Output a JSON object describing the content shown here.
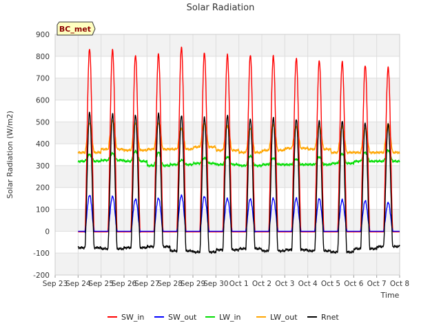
{
  "chart_data": {
    "type": "line",
    "title": "Solar Radiation",
    "xlabel": "Time",
    "ylabel": "Solar Radiation (W/m2)",
    "badge": "BC_met",
    "ylim": [
      -200,
      900
    ],
    "yticks": [
      -200,
      -100,
      0,
      100,
      200,
      300,
      400,
      500,
      600,
      700,
      800,
      900
    ],
    "xlim": [
      0,
      15
    ],
    "xticks": [
      "Sep 23",
      "Sep 24",
      "Sep 25",
      "Sep 26",
      "Sep 27",
      "Sep 28",
      "Sep 29",
      "Sep 30",
      "Oct 1",
      "Oct 2",
      "Oct 3",
      "Oct 4",
      "Oct 5",
      "Oct 6",
      "Oct 7",
      "Oct 8"
    ],
    "grid": true,
    "legend_position": "bottom",
    "days": [
      "Sep 23",
      "Sep 24",
      "Sep 25",
      "Sep 26",
      "Sep 27",
      "Sep 28",
      "Sep 29",
      "Sep 30",
      "Oct 1",
      "Oct 2",
      "Oct 3",
      "Oct 4",
      "Oct 5",
      "Oct 6"
    ],
    "series": [
      {
        "name": "SW_in",
        "color": "#ff0000",
        "daily_peak": [
          835,
          830,
          805,
          810,
          840,
          815,
          805,
          805,
          800,
          790,
          780,
          775,
          760,
          750
        ],
        "night_value": 0
      },
      {
        "name": "SW_out",
        "color": "#0000ff",
        "daily_peak": [
          165,
          160,
          148,
          152,
          165,
          160,
          150,
          148,
          150,
          150,
          148,
          142,
          138,
          130
        ],
        "night_value": 0
      },
      {
        "name": "LW_in",
        "color": "#00dd00",
        "night_level": [
          320,
          325,
          320,
          300,
          305,
          310,
          305,
          300,
          305,
          305,
          305,
          310,
          320,
          320
        ],
        "daily_peak": [
          350,
          355,
          365,
          360,
          325,
          335,
          340,
          345,
          335,
          330,
          340,
          355,
          360,
          370
        ]
      },
      {
        "name": "LW_out",
        "color": "#ffa500",
        "night_level": [
          360,
          375,
          370,
          375,
          375,
          385,
          370,
          360,
          370,
          380,
          375,
          360,
          360,
          360
        ],
        "daily_peak": [
          495,
          505,
          495,
          495,
          470,
          495,
          480,
          470,
          485,
          475,
          480,
          475,
          470,
          490
        ]
      },
      {
        "name": "Rnet",
        "color": "#000000",
        "night_level": [
          -75,
          -80,
          -75,
          -70,
          -90,
          -95,
          -85,
          -80,
          -90,
          -85,
          -90,
          -95,
          -80,
          -70
        ],
        "daily_peak": [
          540,
          535,
          530,
          535,
          530,
          520,
          530,
          515,
          520,
          515,
          505,
          505,
          495,
          490
        ]
      }
    ]
  }
}
